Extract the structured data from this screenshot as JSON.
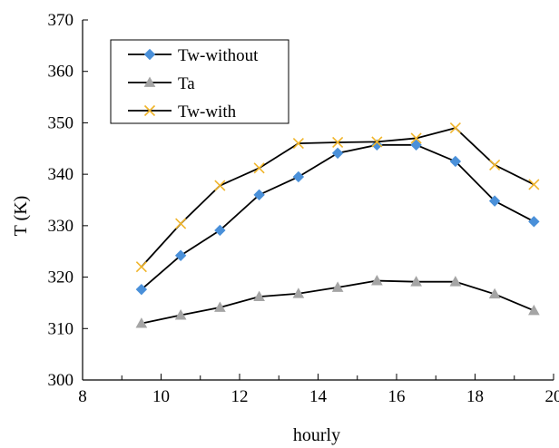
{
  "chart_data": {
    "type": "line",
    "title": "",
    "xlabel": "hourly",
    "ylabel": "T (K)",
    "xlim": [
      8,
      20
    ],
    "ylim": [
      300,
      370
    ],
    "x_ticks": [
      8,
      10,
      12,
      14,
      16,
      18,
      20
    ],
    "x_minor_step": 1,
    "y_ticks": [
      300,
      310,
      320,
      330,
      340,
      350,
      360,
      370
    ],
    "grid": false,
    "legend_position": "top-left",
    "x": [
      9.5,
      10.5,
      11.5,
      12.5,
      13.5,
      14.5,
      15.5,
      16.5,
      17.5,
      18.5,
      19.5
    ],
    "series": [
      {
        "name": "Tw-without",
        "marker": "diamond",
        "marker_color": "#4a90d9",
        "line_color": "#000000",
        "values": [
          317.6,
          324.2,
          329.1,
          336.0,
          339.5,
          344.1,
          345.7,
          345.7,
          342.5,
          334.8,
          330.8
        ]
      },
      {
        "name": "Ta",
        "marker": "triangle",
        "marker_color": "#a5a5a5",
        "line_color": "#000000",
        "values": [
          311.0,
          312.6,
          314.1,
          316.2,
          316.8,
          318.0,
          319.3,
          319.1,
          319.1,
          316.7,
          313.5
        ]
      },
      {
        "name": "Tw-with",
        "marker": "x",
        "marker_color": "#f0b429",
        "line_color": "#000000",
        "values": [
          322.0,
          330.4,
          337.8,
          341.2,
          346.0,
          346.2,
          346.3,
          347.0,
          349.0,
          341.8,
          338.0
        ]
      }
    ]
  }
}
